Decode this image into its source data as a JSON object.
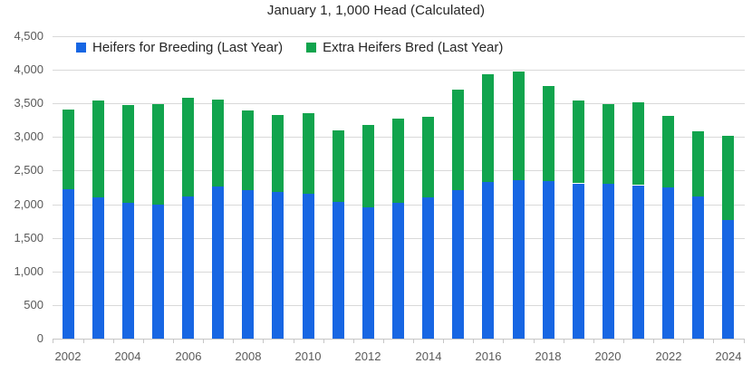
{
  "chart_data": {
    "type": "bar",
    "stacked": true,
    "title": "January 1, 1,000 Head (Calculated)",
    "xlabel": "",
    "ylabel": "",
    "ylim": [
      0,
      4500
    ],
    "ytick_interval": 500,
    "ytick_labels": [
      "0",
      "500",
      "1,000",
      "1,500",
      "2,000",
      "2,500",
      "3,000",
      "3,500",
      "4,000",
      "4,500"
    ],
    "grid": true,
    "legend_position": "top-left-inside",
    "categories": [
      2002,
      2003,
      2004,
      2005,
      2006,
      2007,
      2008,
      2009,
      2010,
      2011,
      2012,
      2013,
      2014,
      2015,
      2016,
      2017,
      2018,
      2019,
      2020,
      2021,
      2022,
      2023,
      2024
    ],
    "xtick_labels": [
      "2002",
      "2004",
      "2006",
      "2008",
      "2010",
      "2012",
      "2014",
      "2016",
      "2018",
      "2020",
      "2022",
      "2024"
    ],
    "series": [
      {
        "name": "Heifers for Breeding (Last Year)",
        "color": "#1766E3",
        "values": [
          2220,
          2110,
          2020,
          2000,
          2110,
          2260,
          2220,
          2190,
          2150,
          2040,
          1960,
          2020,
          2100,
          2210,
          2330,
          2360,
          2340,
          2310,
          2300,
          2280,
          2250,
          2110,
          1770
        ]
      },
      {
        "name": "Extra Heifers Bred (Last Year)",
        "color": "#11A44D",
        "values": [
          1190,
          1440,
          1460,
          1490,
          1470,
          1300,
          1180,
          1140,
          1200,
          1060,
          1220,
          1250,
          1200,
          1490,
          1610,
          1620,
          1420,
          1230,
          1190,
          1230,
          1070,
          970,
          1250
        ]
      }
    ],
    "stack_totals": [
      3410,
      3550,
      3480,
      3490,
      3580,
      3560,
      3400,
      3330,
      3350,
      3100,
      3180,
      3270,
      3300,
      3700,
      3940,
      3980,
      3760,
      3540,
      3490,
      3510,
      3320,
      3080,
      3020
    ]
  },
  "colors": {
    "gridline": "#d9d9d9",
    "axis_text": "#595959",
    "title_text": "#262626"
  }
}
